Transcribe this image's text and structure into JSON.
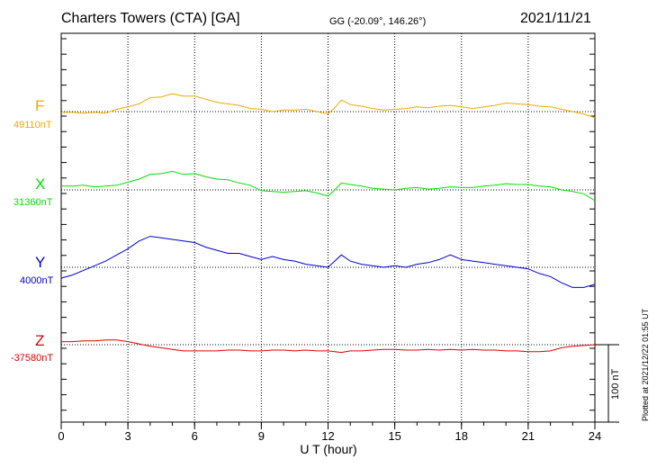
{
  "header": {
    "station": "Charters Towers (CTA)  [GA]",
    "coords": "GG (-20.09°, 146.26°)",
    "date": "2021/11/21"
  },
  "footer": {
    "plotted": "Plotted at 2021/12/22 01:55 UT"
  },
  "chart_data": {
    "type": "line",
    "xlabel": "U T (hour)",
    "xlim": [
      0,
      24
    ],
    "x_ticks": [
      "0",
      "3",
      "6",
      "9",
      "12",
      "15",
      "18",
      "21",
      "24"
    ],
    "grid": true,
    "scale_bar": "100 nT",
    "series": [
      {
        "name": "F",
        "baseline_label": "49110nT",
        "color": "#f0a800",
        "values_nT": [
          [
            0,
            -1
          ],
          [
            0.5,
            -1
          ],
          [
            1,
            -2
          ],
          [
            1.5,
            -1
          ],
          [
            2,
            -2
          ],
          [
            2.5,
            3
          ],
          [
            3,
            6
          ],
          [
            3.5,
            10
          ],
          [
            4,
            18
          ],
          [
            4.5,
            19
          ],
          [
            5,
            23
          ],
          [
            5.5,
            20
          ],
          [
            6,
            20
          ],
          [
            6.5,
            16
          ],
          [
            7,
            12
          ],
          [
            7.5,
            10
          ],
          [
            8,
            8
          ],
          [
            8.5,
            4
          ],
          [
            9,
            3
          ],
          [
            9.5,
            0
          ],
          [
            10,
            2
          ],
          [
            10.5,
            2
          ],
          [
            11,
            3
          ],
          [
            11.5,
            0
          ],
          [
            12,
            -3
          ],
          [
            12.3,
            5
          ],
          [
            12.6,
            15
          ],
          [
            13,
            9
          ],
          [
            13.5,
            7
          ],
          [
            14,
            4
          ],
          [
            14.5,
            2
          ],
          [
            15,
            3
          ],
          [
            15.5,
            4
          ],
          [
            16,
            6
          ],
          [
            16.5,
            5
          ],
          [
            17,
            7
          ],
          [
            17.5,
            8
          ],
          [
            18,
            6
          ],
          [
            18.5,
            4
          ],
          [
            19,
            6
          ],
          [
            19.5,
            8
          ],
          [
            20,
            11
          ],
          [
            20.5,
            10
          ],
          [
            21,
            9
          ],
          [
            21.5,
            7
          ],
          [
            22,
            6
          ],
          [
            22.5,
            3
          ],
          [
            23,
            0
          ],
          [
            23.5,
            -3
          ],
          [
            24,
            -8
          ]
        ]
      },
      {
        "name": "X",
        "baseline_label": "31360nT",
        "color": "#00e000",
        "values_nT": [
          [
            0,
            5
          ],
          [
            0.5,
            5
          ],
          [
            1,
            6
          ],
          [
            1.5,
            4
          ],
          [
            2,
            5
          ],
          [
            2.5,
            6
          ],
          [
            3,
            10
          ],
          [
            3.5,
            14
          ],
          [
            4,
            20
          ],
          [
            4.5,
            21
          ],
          [
            5,
            24
          ],
          [
            5.5,
            20
          ],
          [
            6,
            21
          ],
          [
            6.5,
            17
          ],
          [
            7,
            14
          ],
          [
            7.5,
            13
          ],
          [
            8,
            9
          ],
          [
            8.5,
            6
          ],
          [
            9,
            -1
          ],
          [
            9.5,
            -2
          ],
          [
            10,
            -3
          ],
          [
            10.5,
            -2
          ],
          [
            11,
            -1
          ],
          [
            11.5,
            -4
          ],
          [
            12,
            -8
          ],
          [
            12.3,
            0
          ],
          [
            12.6,
            9
          ],
          [
            13,
            7
          ],
          [
            13.5,
            5
          ],
          [
            14,
            2
          ],
          [
            14.5,
            1
          ],
          [
            15,
            0
          ],
          [
            15.5,
            2
          ],
          [
            16,
            3
          ],
          [
            16.5,
            1
          ],
          [
            17,
            2
          ],
          [
            17.5,
            4
          ],
          [
            18,
            3
          ],
          [
            18.5,
            3
          ],
          [
            19,
            5
          ],
          [
            19.5,
            6
          ],
          [
            20,
            8
          ],
          [
            20.5,
            7
          ],
          [
            21,
            7
          ],
          [
            21.5,
            5
          ],
          [
            22,
            4
          ],
          [
            22.5,
            0
          ],
          [
            23,
            -2
          ],
          [
            23.5,
            -5
          ],
          [
            24,
            -14
          ]
        ]
      },
      {
        "name": "Y",
        "baseline_label": "4000nT",
        "color": "#0000d0",
        "values_nT": [
          [
            0,
            -14
          ],
          [
            0.5,
            -10
          ],
          [
            1,
            -4
          ],
          [
            1.5,
            2
          ],
          [
            2,
            8
          ],
          [
            2.5,
            16
          ],
          [
            3,
            24
          ],
          [
            3.5,
            34
          ],
          [
            4,
            40
          ],
          [
            4.5,
            38
          ],
          [
            5,
            36
          ],
          [
            5.5,
            34
          ],
          [
            6,
            32
          ],
          [
            6.5,
            26
          ],
          [
            7,
            22
          ],
          [
            7.5,
            18
          ],
          [
            8,
            18
          ],
          [
            8.5,
            14
          ],
          [
            9,
            10
          ],
          [
            9.5,
            14
          ],
          [
            10,
            10
          ],
          [
            10.5,
            8
          ],
          [
            11,
            4
          ],
          [
            11.5,
            2
          ],
          [
            12,
            0
          ],
          [
            12.3,
            8
          ],
          [
            12.6,
            16
          ],
          [
            13,
            8
          ],
          [
            13.5,
            4
          ],
          [
            14,
            2
          ],
          [
            14.5,
            0
          ],
          [
            15,
            2
          ],
          [
            15.5,
            0
          ],
          [
            16,
            4
          ],
          [
            16.5,
            6
          ],
          [
            17,
            10
          ],
          [
            17.5,
            16
          ],
          [
            18,
            10
          ],
          [
            18.5,
            8
          ],
          [
            19,
            6
          ],
          [
            19.5,
            4
          ],
          [
            20,
            2
          ],
          [
            20.5,
            0
          ],
          [
            21,
            -2
          ],
          [
            21.5,
            -8
          ],
          [
            22,
            -12
          ],
          [
            22.5,
            -20
          ],
          [
            23,
            -26
          ],
          [
            23.5,
            -26
          ],
          [
            24,
            -22
          ]
        ]
      },
      {
        "name": "Z",
        "baseline_label": "-37580nT",
        "color": "#e00000",
        "values_nT": [
          [
            0,
            4
          ],
          [
            0.5,
            4
          ],
          [
            1,
            5
          ],
          [
            1.5,
            5
          ],
          [
            2,
            6
          ],
          [
            2.5,
            6
          ],
          [
            3,
            4
          ],
          [
            3.5,
            1
          ],
          [
            4,
            -2
          ],
          [
            4.5,
            -4
          ],
          [
            5,
            -6
          ],
          [
            5.5,
            -8
          ],
          [
            6,
            -8
          ],
          [
            6.5,
            -8
          ],
          [
            7,
            -8
          ],
          [
            7.5,
            -7
          ],
          [
            8,
            -7
          ],
          [
            8.5,
            -8
          ],
          [
            9,
            -8
          ],
          [
            9.5,
            -7
          ],
          [
            10,
            -7
          ],
          [
            10.5,
            -8
          ],
          [
            11,
            -7
          ],
          [
            11.5,
            -8
          ],
          [
            12,
            -8
          ],
          [
            12.3,
            -9
          ],
          [
            12.6,
            -10
          ],
          [
            13,
            -8
          ],
          [
            13.5,
            -8
          ],
          [
            14,
            -7
          ],
          [
            14.5,
            -6
          ],
          [
            15,
            -6
          ],
          [
            15.5,
            -7
          ],
          [
            16,
            -7
          ],
          [
            16.5,
            -6
          ],
          [
            17,
            -7
          ],
          [
            17.5,
            -6
          ],
          [
            18,
            -7
          ],
          [
            18.5,
            -6
          ],
          [
            19,
            -7
          ],
          [
            19.5,
            -7
          ],
          [
            20,
            -8
          ],
          [
            20.5,
            -8
          ],
          [
            21,
            -9
          ],
          [
            21.5,
            -9
          ],
          [
            22,
            -8
          ],
          [
            22.5,
            -4
          ],
          [
            23,
            -2
          ],
          [
            23.5,
            -1
          ],
          [
            24,
            0
          ]
        ]
      }
    ]
  }
}
